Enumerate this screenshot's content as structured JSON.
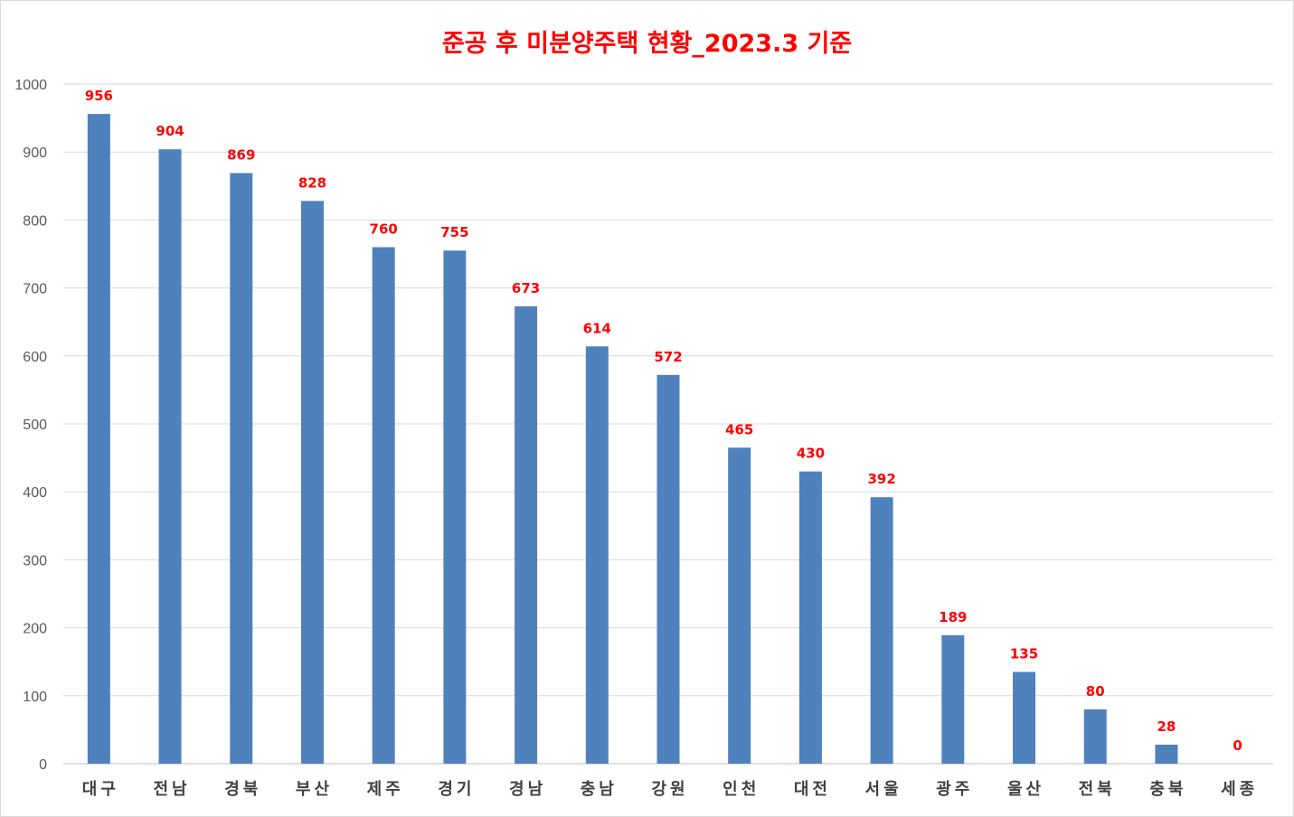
{
  "chart_data": {
    "type": "bar",
    "title": "준공 후 미분양주택 현황_2023.3 기준",
    "xlabel": "",
    "ylabel": "",
    "categories": [
      "대구",
      "전남",
      "경북",
      "부산",
      "제주",
      "경기",
      "경남",
      "충남",
      "강원",
      "인천",
      "대전",
      "서울",
      "광주",
      "울산",
      "전북",
      "충북",
      "세종"
    ],
    "values": [
      956,
      904,
      869,
      828,
      760,
      755,
      673,
      614,
      572,
      465,
      430,
      392,
      189,
      135,
      80,
      28,
      0
    ],
    "ylim": [
      0,
      1000
    ],
    "yticks": [
      0,
      100,
      200,
      300,
      400,
      500,
      600,
      700,
      800,
      900,
      1000
    ],
    "grid": true,
    "legend": "none",
    "colors": {
      "bar": "#4f81bd",
      "data_label": "#ff0000",
      "title": "#ff0000",
      "grid": "#d9d9d9"
    }
  }
}
